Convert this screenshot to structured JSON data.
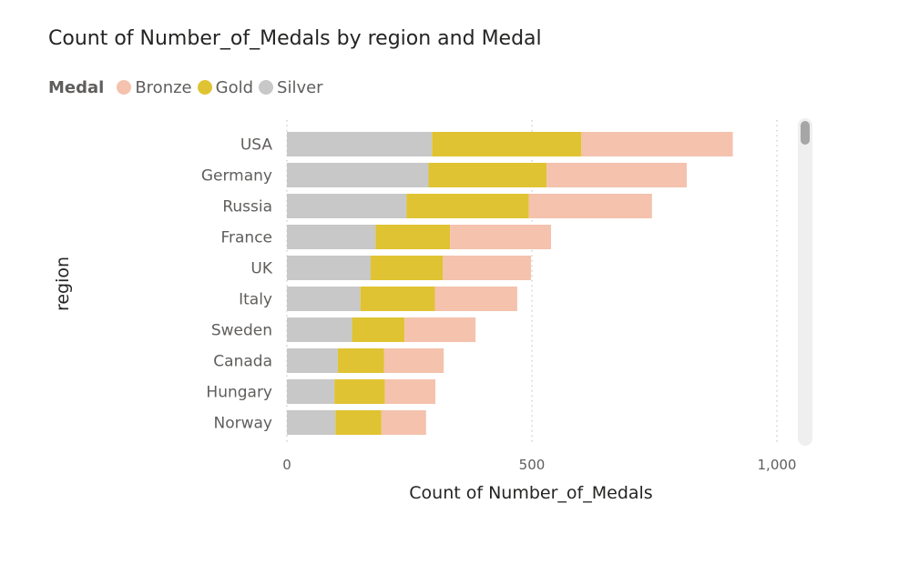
{
  "chart_data": {
    "type": "bar",
    "orientation": "horizontal",
    "stacked": true,
    "title": "Count of Number_of_Medals by region and Medal",
    "xlabel": "Count of Number_of_Medals",
    "ylabel": "region",
    "legend_title": "Medal",
    "legend_position": "top-left",
    "categories": [
      "USA",
      "Germany",
      "Russia",
      "France",
      "UK",
      "Italy",
      "Sweden",
      "Canada",
      "Hungary",
      "Norway"
    ],
    "series": [
      {
        "name": "Silver",
        "color": "#c8c8c8",
        "values": [
          296,
          289,
          244,
          181,
          171,
          150,
          133,
          104,
          97,
          99
        ]
      },
      {
        "name": "Gold",
        "color": "#e0c332",
        "values": [
          305,
          241,
          250,
          152,
          147,
          152,
          107,
          94,
          103,
          94
        ]
      },
      {
        "name": "Bronze",
        "color": "#f4c2ad",
        "values": [
          309,
          286,
          251,
          206,
          180,
          168,
          145,
          122,
          103,
          91
        ]
      }
    ],
    "legend_order": [
      "Bronze",
      "Gold",
      "Silver"
    ],
    "xlim": [
      0,
      1000
    ],
    "xticks": [
      0,
      500,
      1000
    ],
    "xtick_labels": [
      "0",
      "500",
      "1,000"
    ],
    "grid": "vertical-dotted"
  }
}
